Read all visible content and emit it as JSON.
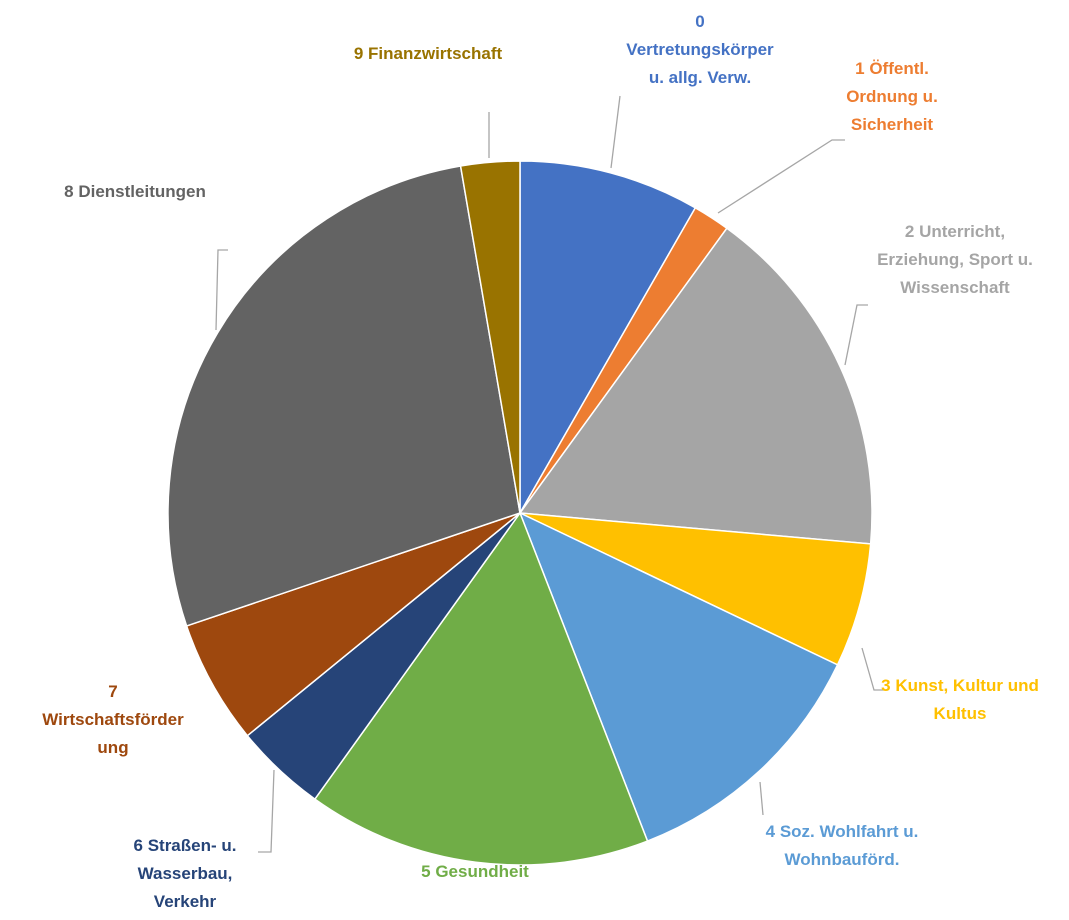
{
  "chart_data": {
    "type": "pie",
    "categories": [
      "0 Vertretungskörper u. allg. Verw.",
      "1 Öffentl. Ordnung u. Sicherheit",
      "2 Unterricht, Erziehung, Sport u. Wissenschaft",
      "3 Kunst, Kultur und Kultus",
      "4 Soz. Wohlfahrt u. Wohnbauförd.",
      "5 Gesundheit",
      "6 Straßen- u. Wasserbau, Verkehr",
      "7 Wirtschaftsförderung",
      "8 Dienstleitungen",
      "9 Finanzwirtschaft"
    ],
    "values": [
      8.3,
      1.7,
      16.4,
      5.7,
      12.0,
      15.8,
      4.2,
      5.7,
      27.5,
      2.7
    ],
    "colors": [
      "#4472C4",
      "#ED7D31",
      "#A5A5A5",
      "#FFC000",
      "#5B9BD5",
      "#70AD47",
      "#264478",
      "#9E480E",
      "#636363",
      "#997300"
    ]
  }
}
